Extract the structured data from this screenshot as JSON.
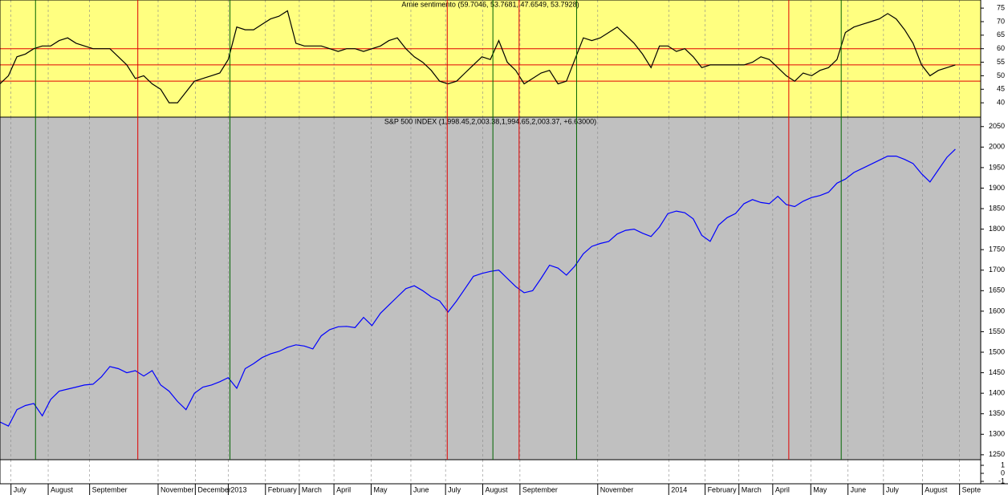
{
  "chart_data": [
    {
      "type": "line",
      "title": "Arnie sentimento (59.7046, 53.7681, 47.6549, 53.7928)",
      "background": "#ffff80",
      "ylim": [
        34.7,
        78
      ],
      "yticks": [
        40,
        45,
        50,
        55,
        60,
        65,
        70,
        75
      ],
      "reference_lines": [
        60,
        54,
        48
      ],
      "reference_color": "#e00000",
      "x": [
        0,
        1,
        2,
        3,
        4,
        5,
        6,
        7,
        8,
        9,
        10,
        11,
        12,
        13,
        14,
        15,
        16,
        17,
        18,
        19,
        20,
        21,
        22,
        23,
        24,
        25,
        26,
        27,
        28,
        29,
        30,
        31,
        32,
        33,
        34,
        35,
        36,
        37,
        38,
        39,
        40,
        41,
        42,
        43,
        44,
        45,
        46,
        47,
        48,
        49,
        50,
        51,
        52,
        53,
        54,
        55,
        56,
        57,
        58,
        59,
        60,
        61,
        62,
        63,
        64,
        65,
        66,
        67,
        68,
        69,
        70,
        71,
        72,
        73,
        74,
        75,
        76,
        77,
        78,
        79,
        80,
        81,
        82,
        83,
        84,
        85,
        86,
        87,
        88,
        89,
        90,
        91,
        92,
        93,
        94,
        95,
        96,
        97,
        98,
        99,
        100,
        101,
        102,
        103,
        104,
        105,
        106,
        107,
        108,
        109,
        110,
        111,
        112,
        113
      ],
      "series": [
        {
          "color": "#000000",
          "values": [
            47,
            50,
            57,
            58,
            60,
            61,
            61,
            63,
            64,
            62,
            61,
            60,
            60,
            60,
            57,
            54,
            49,
            50,
            47,
            45,
            40,
            40,
            44,
            48,
            49,
            50,
            51,
            56,
            68,
            67,
            67,
            69,
            71,
            72,
            74,
            62,
            61,
            61,
            61,
            60,
            59,
            60,
            60,
            59,
            60,
            61,
            63,
            64,
            60,
            57,
            55,
            52,
            48,
            47,
            48,
            51,
            54,
            57,
            56,
            63,
            55,
            52,
            47,
            49,
            51,
            52,
            47,
            48,
            56,
            64,
            63,
            64,
            66,
            68,
            65,
            62,
            58,
            53,
            61,
            61,
            59,
            60,
            57,
            53,
            54,
            54,
            54,
            54,
            54,
            55,
            57,
            56,
            53,
            50,
            48,
            51,
            50,
            52,
            53,
            56,
            66,
            68,
            69,
            70,
            71,
            73,
            71,
            67,
            62,
            54,
            50,
            52,
            53,
            54
          ]
        }
      ]
    },
    {
      "type": "line",
      "title": "S&P 500 INDEX (1,998.45,2,003.38,1,994.65,2,003.37, +6.63000)",
      "background": "#c0c0c0",
      "ylim": [
        1238,
        2073
      ],
      "yticks": [
        1250,
        1300,
        1350,
        1400,
        1450,
        1500,
        1550,
        1600,
        1650,
        1700,
        1750,
        1800,
        1850,
        1900,
        1950,
        2000,
        2050
      ],
      "x": [
        0,
        1,
        2,
        3,
        4,
        5,
        6,
        7,
        8,
        9,
        10,
        11,
        12,
        13,
        14,
        15,
        16,
        17,
        18,
        19,
        20,
        21,
        22,
        23,
        24,
        25,
        26,
        27,
        28,
        29,
        30,
        31,
        32,
        33,
        34,
        35,
        36,
        37,
        38,
        39,
        40,
        41,
        42,
        43,
        44,
        45,
        46,
        47,
        48,
        49,
        50,
        51,
        52,
        53,
        54,
        55,
        56,
        57,
        58,
        59,
        60,
        61,
        62,
        63,
        64,
        65,
        66,
        67,
        68,
        69,
        70,
        71,
        72,
        73,
        74,
        75,
        76,
        77,
        78,
        79,
        80,
        81,
        82,
        83,
        84,
        85,
        86,
        87,
        88,
        89,
        90,
        91,
        92,
        93,
        94,
        95,
        96,
        97,
        98,
        99,
        100,
        101,
        102,
        103,
        104,
        105,
        106,
        107,
        108,
        109,
        110,
        111,
        112,
        113
      ],
      "series": [
        {
          "color": "#0000ff",
          "values": [
            1330,
            1320,
            1360,
            1370,
            1375,
            1345,
            1385,
            1405,
            1410,
            1415,
            1420,
            1422,
            1440,
            1465,
            1460,
            1450,
            1455,
            1442,
            1455,
            1420,
            1405,
            1380,
            1360,
            1400,
            1415,
            1420,
            1428,
            1438,
            1412,
            1460,
            1472,
            1487,
            1496,
            1502,
            1512,
            1518,
            1515,
            1508,
            1540,
            1555,
            1562,
            1563,
            1560,
            1585,
            1565,
            1595,
            1615,
            1635,
            1655,
            1662,
            1650,
            1635,
            1625,
            1598,
            1625,
            1655,
            1685,
            1692,
            1697,
            1700,
            1680,
            1660,
            1645,
            1650,
            1680,
            1712,
            1705,
            1688,
            1710,
            1740,
            1758,
            1765,
            1770,
            1788,
            1797,
            1800,
            1790,
            1782,
            1805,
            1838,
            1844,
            1840,
            1825,
            1785,
            1770,
            1810,
            1828,
            1838,
            1862,
            1872,
            1865,
            1862,
            1880,
            1860,
            1855,
            1868,
            1877,
            1882,
            1890,
            1912,
            1922,
            1938,
            1948,
            1958,
            1968,
            1978,
            1978,
            1970,
            1960,
            1935,
            1915,
            1945,
            1975,
            1995
          ]
        }
      ]
    },
    {
      "type": "line",
      "background": "#ffffff",
      "ylim": [
        -1.3,
        1.7
      ],
      "yticks": [
        1,
        0,
        -1
      ],
      "series": []
    }
  ],
  "x_axis": {
    "xlim": [
      0,
      116
    ],
    "xticks": [
      {
        "value": 1.3,
        "label": "July"
      },
      {
        "value": 5.7,
        "label": "August"
      },
      {
        "value": 10.6,
        "label": "September"
      },
      {
        "value": 18.7,
        "label": "November"
      },
      {
        "value": 23.1,
        "label": "December"
      },
      {
        "value": 27,
        "label": "2013"
      },
      {
        "value": 31.4,
        "label": "February"
      },
      {
        "value": 35.4,
        "label": "March"
      },
      {
        "value": 39.5,
        "label": "April"
      },
      {
        "value": 43.9,
        "label": "May"
      },
      {
        "value": 48.6,
        "label": "June"
      },
      {
        "value": 52.7,
        "label": "July"
      },
      {
        "value": 57.1,
        "label": "August"
      },
      {
        "value": 61.5,
        "label": "September"
      },
      {
        "value": 70.7,
        "label": "November"
      },
      {
        "value": 79.1,
        "label": "2014"
      },
      {
        "value": 83.4,
        "label": "February"
      },
      {
        "value": 87.4,
        "label": "March"
      },
      {
        "value": 91.4,
        "label": "April"
      },
      {
        "value": 95.9,
        "label": "May"
      },
      {
        "value": 100.3,
        "label": "June"
      },
      {
        "value": 104.5,
        "label": "July"
      },
      {
        "value": 109.1,
        "label": "August"
      },
      {
        "value": 113.5,
        "label": "Septe"
      }
    ]
  },
  "signals": [
    {
      "x": 4.2,
      "color": "#006400"
    },
    {
      "x": 16.3,
      "color": "#e00000"
    },
    {
      "x": 27.2,
      "color": "#006400"
    },
    {
      "x": 52.9,
      "color": "#e00000"
    },
    {
      "x": 58.3,
      "color": "#006400"
    },
    {
      "x": 61.4,
      "color": "#e00000"
    },
    {
      "x": 68.2,
      "color": "#006400"
    },
    {
      "x": 93.3,
      "color": "#e00000"
    },
    {
      "x": 99.5,
      "color": "#006400"
    }
  ]
}
